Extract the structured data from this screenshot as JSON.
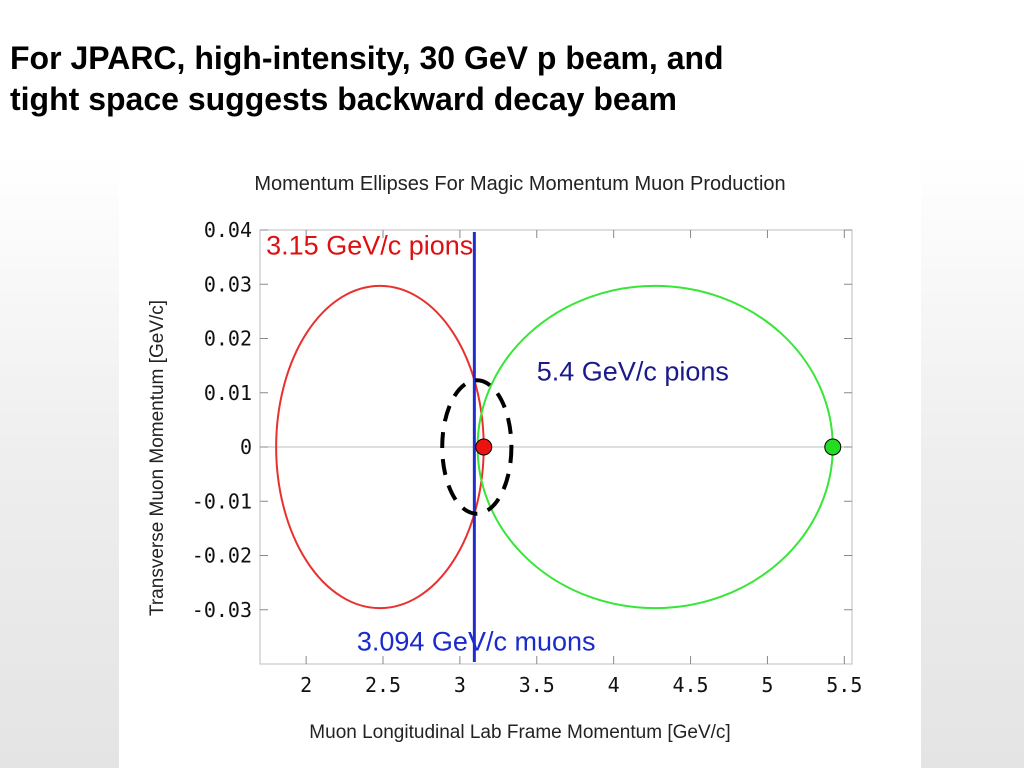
{
  "slide": {
    "title_line1": "For JPARC, high-intensity, 30 GeV p beam, and",
    "title_line2": "tight space suggests backward decay beam"
  },
  "chart_data": {
    "type": "line",
    "title": "Momentum Ellipses For Magic Momentum Muon Production",
    "xlabel": "Muon Longitudinal Lab Frame Momentum [GeV/c]",
    "ylabel": "Transverse Muon Momentum [GeV/c]",
    "xlim": [
      1.7,
      5.55
    ],
    "ylim": [
      -0.04,
      0.04
    ],
    "x_ticks": [
      2,
      2.5,
      3,
      3.5,
      4,
      4.5,
      5,
      5.5
    ],
    "x_tick_labels": [
      "2",
      "2.5",
      "3",
      "3.5",
      "4",
      "4.5",
      "5",
      "5.5"
    ],
    "y_ticks": [
      0.04,
      0.03,
      0.02,
      0.01,
      0,
      -0.01,
      -0.02,
      -0.03
    ],
    "y_tick_labels": [
      "0.04",
      "0.03",
      "0.02",
      "0.01",
      "0",
      "-0.01",
      "-0.02",
      "-0.03"
    ],
    "grid": false,
    "series": [
      {
        "kind": "ellipse",
        "color": "#e8312f",
        "cx": 2.48,
        "cy": 0,
        "rx": 0.675,
        "ry": 0.0297
      },
      {
        "kind": "ellipse",
        "color": "#37e637",
        "cx": 4.27,
        "cy": 0,
        "rx": 1.155,
        "ry": 0.0297
      },
      {
        "kind": "vline",
        "color": "#1f2ecc",
        "x": 3.094
      },
      {
        "kind": "marker",
        "color": "#ee1111",
        "x": 3.155,
        "y": 0
      },
      {
        "kind": "marker",
        "color": "#22dd22",
        "x": 5.425,
        "y": 0
      },
      {
        "kind": "dashed-ellipse",
        "color": "#000000",
        "cx": 3.11,
        "cy": 0,
        "rx": 0.225,
        "ry": 0.0123
      }
    ],
    "annotations": [
      {
        "text": "3.15 GeV/c pions",
        "color": "#dd1111",
        "x": 1.74,
        "y": 0.0355
      },
      {
        "text": "5.4 GeV/c pions",
        "color": "#1a1a8c",
        "x": 3.5,
        "y": 0.0123
      },
      {
        "text": "3.094 GeV/c muons",
        "color": "#1a2acc",
        "x": 2.33,
        "y": -0.0375
      }
    ]
  }
}
